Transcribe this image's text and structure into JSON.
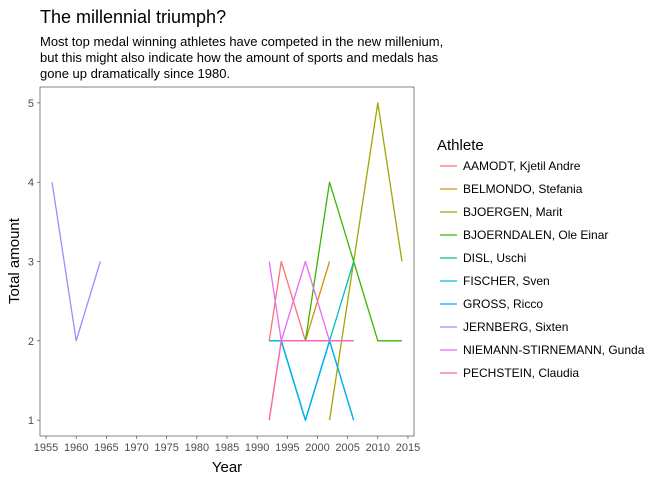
{
  "chart_data": {
    "type": "line",
    "title": "The millennial triumph?",
    "subtitle": [
      "Most top medal winning athletes have competed in the new millenium,",
      "but this might also indicate how the amount of sports and medals has",
      "gone up dramatically since 1980."
    ],
    "xlabel": "Year",
    "ylabel": "Total amount",
    "xlim": [
      1954,
      2016
    ],
    "ylim": [
      0.8,
      5.2
    ],
    "x_ticks": [
      1955,
      1960,
      1965,
      1970,
      1975,
      1980,
      1985,
      1990,
      1995,
      2000,
      2005,
      2010,
      2015
    ],
    "y_ticks": [
      1,
      2,
      3,
      4,
      5
    ],
    "grid": false,
    "legend_title": "Athlete",
    "legend_position": "right",
    "series": [
      {
        "name": "AAMODT, Kjetil Andre",
        "color": "#F8766D",
        "x": [
          1992,
          1994,
          1998,
          2002,
          2006
        ],
        "y": [
          2,
          3,
          2,
          2,
          2
        ]
      },
      {
        "name": "BELMONDO, Stefania",
        "color": "#D89000",
        "x": [
          1992,
          1994,
          1998,
          2002
        ],
        "y": [
          1,
          2,
          2,
          3
        ]
      },
      {
        "name": "BJOERGEN, Marit",
        "color": "#A3A500",
        "x": [
          2002,
          2006,
          2010,
          2014
        ],
        "y": [
          1,
          3,
          5,
          3
        ]
      },
      {
        "name": "BJOERNDALEN, Ole Einar",
        "color": "#39B600",
        "x": [
          1998,
          2002,
          2006,
          2010,
          2014
        ],
        "y": [
          2,
          4,
          3,
          2,
          2
        ]
      },
      {
        "name": "DISL, Uschi",
        "color": "#00BF7D",
        "x": [
          1992,
          1994,
          1998,
          2002,
          2006
        ],
        "y": [
          2,
          2,
          1,
          2,
          1
        ]
      },
      {
        "name": "FISCHER, Sven",
        "color": "#00BFC4",
        "x": [
          1994,
          1998,
          2002,
          2006
        ],
        "y": [
          2,
          1,
          2,
          3
        ]
      },
      {
        "name": "GROSS, Ricco",
        "color": "#00B0F6",
        "x": [
          1992,
          1994,
          1998,
          2002,
          2006
        ],
        "y": [
          2,
          2,
          1,
          2,
          1
        ]
      },
      {
        "name": "JERNBERG, Sixten",
        "color": "#9590FF",
        "x": [
          1956,
          1960,
          1964
        ],
        "y": [
          4,
          2,
          3
        ]
      },
      {
        "name": "NIEMANN-STIRNEMANN, Gunda",
        "color": "#E76BF3",
        "x": [
          1992,
          1994,
          1998,
          2002
        ],
        "y": [
          3,
          2,
          3,
          2
        ]
      },
      {
        "name": "PECHSTEIN, Claudia",
        "color": "#FF62BC",
        "x": [
          1992,
          1994,
          1998,
          2002,
          2006
        ],
        "y": [
          1,
          2,
          2,
          2,
          2
        ]
      }
    ]
  }
}
